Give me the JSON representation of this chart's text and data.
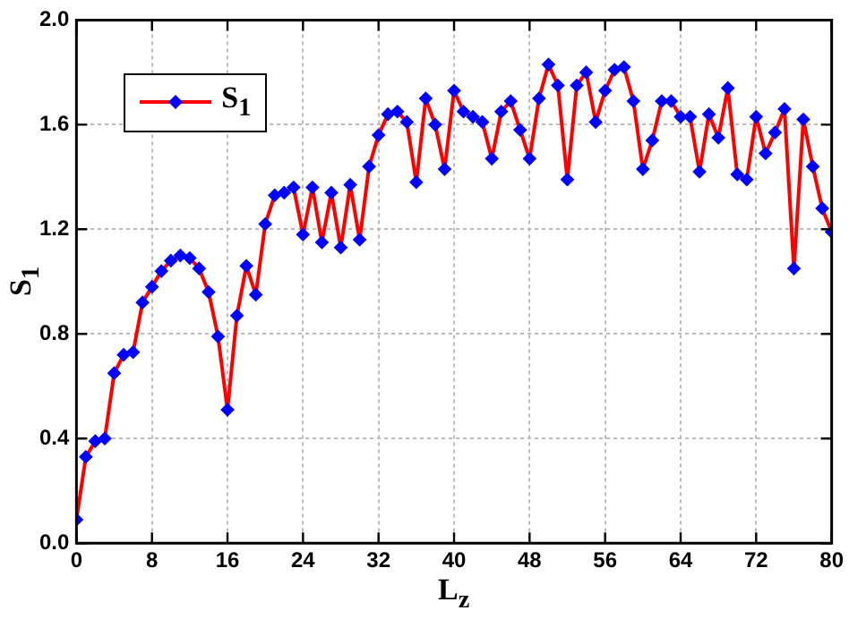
{
  "chart_data": {
    "type": "line",
    "xlabel": "L$_{z}$",
    "ylabel": "S$_{1}$",
    "x": [
      0,
      1,
      2,
      3,
      4,
      5,
      6,
      7,
      8,
      9,
      10,
      11,
      12,
      13,
      14,
      15,
      16,
      17,
      18,
      19,
      20,
      21,
      22,
      23,
      24,
      25,
      26,
      27,
      28,
      29,
      30,
      31,
      32,
      33,
      34,
      35,
      36,
      37,
      38,
      39,
      40,
      41,
      42,
      43,
      44,
      45,
      46,
      47,
      48,
      49,
      50,
      51,
      52,
      53,
      54,
      55,
      56,
      57,
      58,
      59,
      60,
      61,
      62,
      63,
      64,
      65,
      66,
      67,
      68,
      69,
      70,
      71,
      72,
      73,
      74,
      75,
      76,
      77,
      78,
      79,
      80
    ],
    "series": [
      {
        "name": "S$_{1}$",
        "color": "#ff0000",
        "values": [
          0.09,
          0.33,
          0.39,
          0.4,
          0.65,
          0.72,
          0.73,
          0.92,
          0.98,
          1.04,
          1.08,
          1.1,
          1.09,
          1.05,
          0.96,
          0.79,
          0.51,
          0.87,
          1.06,
          0.95,
          1.22,
          1.33,
          1.34,
          1.36,
          1.18,
          1.36,
          1.15,
          1.34,
          1.13,
          1.37,
          1.16,
          1.44,
          1.56,
          1.64,
          1.65,
          1.61,
          1.38,
          1.7,
          1.6,
          1.43,
          1.73,
          1.65,
          1.63,
          1.61,
          1.47,
          1.65,
          1.69,
          1.58,
          1.47,
          1.7,
          1.83,
          1.75,
          1.39,
          1.75,
          1.8,
          1.61,
          1.73,
          1.81,
          1.82,
          1.69,
          1.43,
          1.54,
          1.69,
          1.69,
          1.63,
          1.63,
          1.42,
          1.64,
          1.55,
          1.74,
          1.41,
          1.39,
          1.63,
          1.49,
          1.57,
          1.66,
          1.05,
          1.62,
          1.44,
          1.28,
          1.19
        ]
      }
    ],
    "xlim": [
      0,
      80
    ],
    "xticks": [
      0,
      8,
      16,
      24,
      32,
      40,
      48,
      56,
      64,
      72,
      80
    ],
    "ylim": [
      0,
      2
    ],
    "yticks": [
      {
        "value": 0,
        "label": "0.0"
      },
      0.4,
      0.8,
      1.2,
      1.6,
      {
        "value": 2,
        "label": "2.0"
      }
    ],
    "grid": true,
    "legend": "top left",
    "marker": "diamond",
    "line_style": "solid"
  }
}
